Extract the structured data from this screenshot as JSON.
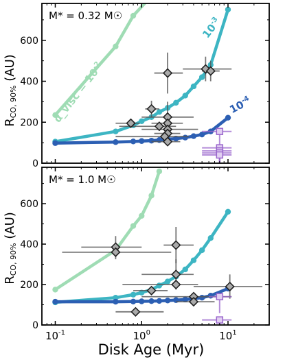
{
  "figure": {
    "xlabel": "Disk Age (Myr)",
    "ylabel": "R_CO, 90% (AU)"
  },
  "chart_data": [
    {
      "type": "scatter",
      "panel": "top",
      "annotation": "M* = 0.32 M☉",
      "xscale": "log",
      "xlim": [
        0.07,
        30
      ],
      "ylim": [
        0,
        780
      ],
      "x_ticks": [
        0.1,
        1,
        10
      ],
      "x_tick_labels": [
        "10^-1",
        "10^0",
        "10^1"
      ],
      "y_ticks": [
        0,
        200,
        400,
        600
      ],
      "model_curves": [
        {
          "label": "α_visc = 10^-2",
          "color": "#9fdcb4",
          "x": [
            0.1,
            0.5,
            0.8,
            1.2
          ],
          "y": [
            235,
            570,
            720,
            800
          ]
        },
        {
          "label": "10^-3",
          "color": "#3db5c3",
          "x": [
            0.1,
            0.5,
            0.8,
            1.0,
            1.3,
            1.6,
            2.0,
            2.5,
            3.2,
            4.0,
            5.0,
            6.3,
            10.0
          ],
          "y": [
            105,
            155,
            185,
            205,
            225,
            250,
            270,
            295,
            330,
            375,
            420,
            480,
            750
          ]
        },
        {
          "label": "10^-4",
          "color": "#2c5fb3",
          "x": [
            0.1,
            0.5,
            0.8,
            1.0,
            1.3,
            1.6,
            2.0,
            2.5,
            3.2,
            4.0,
            5.0,
            6.3,
            10.0
          ],
          "y": [
            98,
            103,
            106,
            108,
            110,
            113,
            117,
            120,
            125,
            132,
            140,
            155,
            222
          ]
        }
      ],
      "observations": [
        {
          "x": 0.75,
          "y": 195,
          "xerr": [
            0.5,
            0.95
          ],
          "yerr": [
            185,
            205
          ]
        },
        {
          "x": 1.3,
          "y": 265,
          "xerr": [
            1.1,
            1.6
          ],
          "yerr": [
            225,
            305
          ]
        },
        {
          "x": 1.6,
          "y": 180,
          "xerr": [
            0.55,
            2.5
          ],
          "yerr": [
            175,
            185
          ]
        },
        {
          "x": 2.0,
          "y": 440,
          "xerr": [
            1.4,
            3.0
          ],
          "yerr": [
            340,
            540
          ]
        },
        {
          "x": 2.0,
          "y": 225,
          "xerr": [
            1.0,
            4.0
          ],
          "yerr": [
            150,
            300
          ]
        },
        {
          "x": 2.0,
          "y": 195,
          "xerr": [
            1.3,
            3.0
          ],
          "yerr": [
            175,
            215
          ]
        },
        {
          "x": 2.0,
          "y": 165,
          "xerr": [
            1.0,
            4.5
          ],
          "yerr": [
            130,
            205
          ]
        },
        {
          "x": 2.0,
          "y": 145,
          "xerr": [
            1.4,
            2.8
          ],
          "yerr": [
            130,
            160
          ]
        },
        {
          "x": 1.85,
          "y": 130,
          "xerr": [
            0.5,
            3.5
          ],
          "yerr": [
            115,
            145
          ]
        },
        {
          "x": 2.0,
          "y": 105,
          "xerr": [
            1.3,
            2.8
          ],
          "yerr": [
            95,
            115
          ]
        },
        {
          "x": 5.5,
          "y": 460,
          "xerr": [
            3.0,
            11.0
          ],
          "yerr": [
            400,
            520
          ]
        },
        {
          "x": 6.3,
          "y": 450,
          "xerr": [
            5.0,
            8.0
          ],
          "yerr": [
            400,
            500
          ]
        }
      ],
      "upper_limits": [
        {
          "x": 8.0,
          "y": 155,
          "xerr": [
            5.0,
            11.0
          ]
        },
        {
          "x": 8.0,
          "y": 75,
          "xerr": [
            5.0,
            11.0
          ]
        },
        {
          "x": 8.0,
          "y": 60,
          "xerr": [
            5.0,
            11.0
          ]
        },
        {
          "x": 8.0,
          "y": 50,
          "xerr": [
            5.0,
            11.0
          ]
        },
        {
          "x": 8.0,
          "y": 40,
          "xerr": [
            5.0,
            11.0
          ]
        }
      ],
      "colors": {
        "observed": "#555555",
        "upper_limit": "#9966cc"
      }
    },
    {
      "type": "scatter",
      "panel": "bottom",
      "annotation": "M* = 1.0 M☉",
      "xscale": "log",
      "xlim": [
        0.07,
        30
      ],
      "ylim": [
        0,
        780
      ],
      "x_ticks": [
        0.1,
        1,
        10
      ],
      "x_tick_labels": [
        "10^-1",
        "10^0",
        "10^1"
      ],
      "y_ticks": [
        0,
        200,
        400,
        600
      ],
      "model_curves": [
        {
          "label": "α_visc = 10^-2",
          "color": "#9fdcb4",
          "x": [
            0.1,
            0.5,
            0.8,
            1.0,
            1.3,
            1.6
          ],
          "y": [
            175,
            370,
            490,
            540,
            640,
            760
          ]
        },
        {
          "label": "10^-3",
          "color": "#3db5c3",
          "x": [
            0.1,
            0.5,
            0.8,
            1.0,
            1.3,
            1.6,
            2.0,
            2.5,
            3.2,
            4.0,
            5.0,
            6.3,
            10.0
          ],
          "y": [
            112,
            135,
            150,
            160,
            175,
            195,
            215,
            240,
            275,
            320,
            370,
            430,
            560
          ]
        },
        {
          "label": "10^-4",
          "color": "#2c5fb3",
          "x": [
            0.1,
            0.5,
            0.8,
            1.0,
            1.3,
            1.6,
            2.0,
            2.5,
            3.2,
            4.0,
            5.0,
            6.3,
            10.0
          ],
          "y": [
            115,
            115,
            116,
            117,
            118,
            119,
            121,
            123,
            126,
            130,
            135,
            145,
            180
          ]
        }
      ],
      "observations": [
        {
          "x": 0.5,
          "y": 385,
          "xerr": [
            0.2,
            1.0
          ],
          "yerr": [
            335,
            440
          ]
        },
        {
          "x": 0.5,
          "y": 360,
          "xerr": [
            0.12,
            2.2
          ],
          "yerr": [
            325,
            395
          ]
        },
        {
          "x": 0.85,
          "y": 65,
          "xerr": [
            0.5,
            1.8
          ],
          "yerr": [
            60,
            70
          ]
        },
        {
          "x": 1.3,
          "y": 170,
          "xerr": [
            0.8,
            2.0
          ],
          "yerr": [
            150,
            190
          ]
        },
        {
          "x": 2.5,
          "y": 395,
          "xerr": [
            1.8,
            4.0
          ],
          "yerr": [
            305,
            485
          ]
        },
        {
          "x": 2.5,
          "y": 250,
          "xerr": [
            1.0,
            4.0
          ],
          "yerr": [
            175,
            325
          ]
        },
        {
          "x": 2.5,
          "y": 200,
          "xerr": [
            0.6,
            4.5
          ],
          "yerr": [
            190,
            210
          ]
        },
        {
          "x": 4.0,
          "y": 140,
          "xerr": [
            1.0,
            11.0
          ],
          "yerr": [
            130,
            150
          ]
        },
        {
          "x": 4.0,
          "y": 115,
          "xerr": [
            2.5,
            7.0
          ],
          "yerr": [
            105,
            125
          ]
        },
        {
          "x": 10.5,
          "y": 190,
          "xerr": [
            4.0,
            25.0
          ],
          "yerr": [
            130,
            250
          ]
        }
      ],
      "upper_limits": [
        {
          "x": 8.0,
          "y": 140,
          "xerr": [
            6.0,
            11.0
          ]
        },
        {
          "x": 8.0,
          "y": 25,
          "xerr": [
            5.0,
            11.0
          ]
        }
      ],
      "colors": {
        "observed": "#555555",
        "upper_limit": "#9966cc"
      }
    }
  ]
}
